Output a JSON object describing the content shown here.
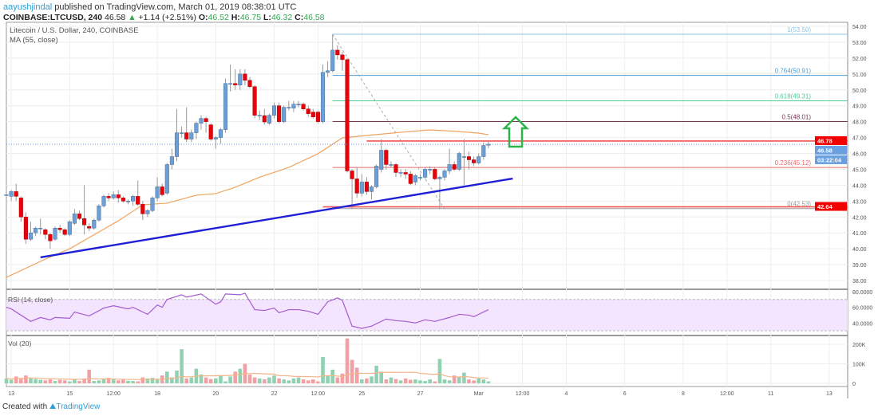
{
  "header": {
    "user": "aayushjindal",
    "published": "published on TradingView.com, March 01, 2019 08:38:01 UTC",
    "symbol": "COINBASE:LTCUSD, 240",
    "last": "46.58",
    "change": "+1.14 (+2.51%)",
    "o_label": "O:",
    "o": "46.52",
    "h_label": "H:",
    "h": "46.75",
    "l_label": "L:",
    "l": "46.32",
    "c_label": "C:",
    "c": "46.58"
  },
  "footer": {
    "created": "Created with",
    "brand": "TradingView"
  },
  "colors": {
    "up": "#6a9fd8",
    "down": "#e8000b",
    "ma": "#f0a35e",
    "trendline": "#1f1fd6",
    "hline": "#f25555",
    "vol_up": "#8fd1b0",
    "vol_down": "#f2a0a4",
    "rsi": "#a55bd0",
    "rsi_band": "#f3e5fd",
    "arrow": "#2db34a"
  },
  "chart_data": [
    {
      "type": "candlestick",
      "title": "Litecoin / U.S. Dollar, 240, COINBASE",
      "indicator": "MA (55, close)",
      "ylim": [
        38,
        54
      ],
      "yticks": [
        "54.00",
        "53.00",
        "52.00",
        "51.00",
        "50.00",
        "49.00",
        "48.00",
        "47.00",
        "46.00",
        "45.00",
        "44.00",
        "43.00",
        "42.00",
        "41.00",
        "40.00",
        "39.00",
        "38.00"
      ],
      "xticks": [
        {
          "label": "13",
          "candle": 1
        },
        {
          "label": "15",
          "candle": 13
        },
        {
          "label": "12:00",
          "candle": 22
        },
        {
          "label": "18",
          "candle": 31
        },
        {
          "label": "20",
          "candle": 43
        },
        {
          "label": "22",
          "candle": 55
        },
        {
          "label": "12:00",
          "candle": 64
        },
        {
          "label": "25",
          "candle": 73
        },
        {
          "label": "27",
          "candle": 85
        },
        {
          "label": "Mar",
          "candle": 97
        },
        {
          "label": "12:00",
          "candle": 106
        },
        {
          "label": "4",
          "candle": 115
        },
        {
          "label": "6",
          "candle": 127
        },
        {
          "label": "8",
          "candle": 139
        },
        {
          "label": "12:00",
          "candle": 148
        },
        {
          "label": "11",
          "candle": 157
        },
        {
          "label": "13",
          "candle": 169
        }
      ],
      "ohlc": [
        [
          43.4,
          43.8,
          42.8,
          43.4
        ],
        [
          43.3,
          43.7,
          43.0,
          43.6
        ],
        [
          43.6,
          44.1,
          43.0,
          43.3
        ],
        [
          43.2,
          43.3,
          41.7,
          42.0
        ],
        [
          42.0,
          42.3,
          40.3,
          40.6
        ],
        [
          40.6,
          41.7,
          40.5,
          41.0
        ],
        [
          41.0,
          41.4,
          40.8,
          41.3
        ],
        [
          41.3,
          41.9,
          40.9,
          41.3
        ],
        [
          41.2,
          41.3,
          40.6,
          40.9
        ],
        [
          40.9,
          41.0,
          40.0,
          40.5
        ],
        [
          40.6,
          41.4,
          40.5,
          41.3
        ],
        [
          41.3,
          41.5,
          41.0,
          41.2
        ],
        [
          41.2,
          41.3,
          40.8,
          40.9
        ],
        [
          40.9,
          41.8,
          40.8,
          41.7
        ],
        [
          41.6,
          42.5,
          41.5,
          42.2
        ],
        [
          42.2,
          42.4,
          41.8,
          41.9
        ],
        [
          41.9,
          44.0,
          40.9,
          41.5
        ],
        [
          41.4,
          41.6,
          41.1,
          41.3
        ],
        [
          41.3,
          41.9,
          41.2,
          41.8
        ],
        [
          41.8,
          42.8,
          41.7,
          42.7
        ],
        [
          42.7,
          43.4,
          42.6,
          43.3
        ],
        [
          43.3,
          43.5,
          43.0,
          43.2
        ],
        [
          43.2,
          43.6,
          43.1,
          43.4
        ],
        [
          43.4,
          43.7,
          42.9,
          43.2
        ],
        [
          43.2,
          43.3,
          42.9,
          43.0
        ],
        [
          43.0,
          43.1,
          42.8,
          43.0
        ],
        [
          43.0,
          43.4,
          42.7,
          43.3
        ],
        [
          43.3,
          44.3,
          42.7,
          42.8
        ],
        [
          42.8,
          43.0,
          41.8,
          42.2
        ],
        [
          42.2,
          42.5,
          42.0,
          42.4
        ],
        [
          42.4,
          43.3,
          42.3,
          43.2
        ],
        [
          43.2,
          44.5,
          43.0,
          43.9
        ],
        [
          43.9,
          44.1,
          43.3,
          43.4
        ],
        [
          43.5,
          45.4,
          43.4,
          45.3
        ],
        [
          45.3,
          46.3,
          45.0,
          45.8
        ],
        [
          45.8,
          48.8,
          45.5,
          47.3
        ],
        [
          47.3,
          47.7,
          47.0,
          47.3
        ],
        [
          47.3,
          48.9,
          46.7,
          46.9
        ],
        [
          46.9,
          47.5,
          46.7,
          47.3
        ],
        [
          47.3,
          48.0,
          46.9,
          47.9
        ],
        [
          47.9,
          48.4,
          47.5,
          48.2
        ],
        [
          48.2,
          48.3,
          47.3,
          48.0
        ],
        [
          47.8,
          47.9,
          46.8,
          46.9
        ],
        [
          46.9,
          47.1,
          46.3,
          47.0
        ],
        [
          47.0,
          47.6,
          46.6,
          47.5
        ],
        [
          47.5,
          50.7,
          47.3,
          50.4
        ],
        [
          50.4,
          51.6,
          49.9,
          50.4
        ],
        [
          50.4,
          51.3,
          50.0,
          50.3
        ],
        [
          50.3,
          51.3,
          50.0,
          51.0
        ],
        [
          51.0,
          51.3,
          50.3,
          50.6
        ],
        [
          50.6,
          50.8,
          50.1,
          50.2
        ],
        [
          50.2,
          50.3,
          48.2,
          48.4
        ],
        [
          48.4,
          48.7,
          48.1,
          48.4
        ],
        [
          48.38,
          48.8,
          47.8,
          47.98
        ],
        [
          47.9,
          48.5,
          47.8,
          48.4
        ],
        [
          48.4,
          49.2,
          48.2,
          49.0
        ],
        [
          49.0,
          49.2,
          47.9,
          48.0
        ],
        [
          48.0,
          49.0,
          47.9,
          48.9
        ],
        [
          48.9,
          49.3,
          48.7,
          48.9
        ],
        [
          48.85,
          49.3,
          48.6,
          49.1
        ],
        [
          49.1,
          49.3,
          48.9,
          49.1
        ],
        [
          49.1,
          49.2,
          48.7,
          48.8
        ],
        [
          48.8,
          49.0,
          48.3,
          48.5
        ],
        [
          48.6,
          48.8,
          48.2,
          48.3
        ],
        [
          48.6,
          48.7,
          47.9,
          48.0
        ],
        [
          48.0,
          51.6,
          47.9,
          51.1
        ],
        [
          51.1,
          51.8,
          50.8,
          51.2
        ],
        [
          51.2,
          53.5,
          51.1,
          52.5
        ],
        [
          52.5,
          52.8,
          51.9,
          52.2
        ],
        [
          52.2,
          52.4,
          51.2,
          51.9
        ],
        [
          51.9,
          52.0,
          44.8,
          44.9
        ],
        [
          44.9,
          45.0,
          42.5,
          44.4
        ],
        [
          44.4,
          45.1,
          43.2,
          43.5
        ],
        [
          43.5,
          44.7,
          43.3,
          44.2
        ],
        [
          44.2,
          44.5,
          43.4,
          43.6
        ],
        [
          43.6,
          44.0,
          43.1,
          43.9
        ],
        [
          43.9,
          45.3,
          43.8,
          45.2
        ],
        [
          45.0,
          46.9,
          44.8,
          46.2
        ],
        [
          46.2,
          46.3,
          45.0,
          45.3
        ],
        [
          45.3,
          45.5,
          45.1,
          45.3
        ],
        [
          45.3,
          45.4,
          44.5,
          44.8
        ],
        [
          44.8,
          45.0,
          44.5,
          44.8
        ],
        [
          44.8,
          45.0,
          44.4,
          44.7
        ],
        [
          44.7,
          44.9,
          44.0,
          44.1
        ],
        [
          44.2,
          44.7,
          44.0,
          44.6
        ],
        [
          44.5,
          44.7,
          44.3,
          44.5
        ],
        [
          44.5,
          45.1,
          44.4,
          45.0
        ],
        [
          45.0,
          45.2,
          44.7,
          45.0
        ],
        [
          45.0,
          45.1,
          44.3,
          44.4
        ],
        [
          44.4,
          44.6,
          42.5,
          44.5
        ],
        [
          44.5,
          45.0,
          44.3,
          44.9
        ],
        [
          44.9,
          46.3,
          44.7,
          45.3
        ],
        [
          45.3,
          45.5,
          44.9,
          45.0
        ],
        [
          45.0,
          46.1,
          44.9,
          46.0
        ],
        [
          45.8,
          46.9,
          44.0,
          45.8
        ],
        [
          45.8,
          46.1,
          45.0,
          45.6
        ],
        [
          45.6,
          45.8,
          45.2,
          45.4
        ],
        [
          45.4,
          46.0,
          45.3,
          45.8
        ],
        [
          45.8,
          46.7,
          45.6,
          46.5
        ],
        [
          46.52,
          46.75,
          46.32,
          46.58
        ]
      ],
      "ma_55": [
        [
          0,
          38.2
        ],
        [
          8,
          39.35
        ],
        [
          13,
          40.0
        ],
        [
          23,
          41.76
        ],
        [
          28,
          42.77
        ],
        [
          33,
          42.87
        ],
        [
          39,
          43.37
        ],
        [
          43,
          43.47
        ],
        [
          47,
          43.87
        ],
        [
          52,
          44.5
        ],
        [
          58,
          45.12
        ],
        [
          64,
          45.98
        ],
        [
          69,
          46.98
        ],
        [
          74,
          47.13
        ],
        [
          81,
          47.33
        ],
        [
          87,
          47.48
        ],
        [
          92,
          47.4
        ],
        [
          97,
          47.28
        ],
        [
          99,
          47.18
        ]
      ],
      "price_labels": [
        {
          "text": "46.78",
          "price": 46.78,
          "color": "#f20000"
        },
        {
          "text": "46.58",
          "price": 46.58,
          "color": "#6a9fe0"
        },
        {
          "text": "03:22:04",
          "price": 45.95,
          "color": "#6a9fe0"
        },
        {
          "text": "42.64",
          "price": 42.64,
          "color": "#f20000"
        }
      ],
      "fib_levels": [
        {
          "ratio": "1",
          "price": 53.5,
          "label": "1(53.50)",
          "color": "#8ec3e6"
        },
        {
          "ratio": "0.764",
          "price": 50.91,
          "label": "0.764(50.91)",
          "color": "#4f9fd6"
        },
        {
          "ratio": "0.618",
          "price": 49.31,
          "label": "0.618(49.31)",
          "color": "#4ccf93"
        },
        {
          "ratio": "0.5",
          "price": 48.01,
          "label": "0.5(48.01)",
          "color": "#7a3655"
        },
        {
          "ratio": "0.236",
          "price": 45.12,
          "label": "0.236(45.12)",
          "color": "#e86a6a"
        },
        {
          "ratio": "0",
          "price": 42.53,
          "label": "0(42.53)",
          "color": "#999999"
        }
      ],
      "trendline": [
        [
          7,
          39.46
        ],
        [
          104,
          44.42
        ]
      ],
      "horizontal_lines": [
        {
          "price": 46.78,
          "from": 74
        },
        {
          "price": 42.64,
          "from": 65
        }
      ],
      "fib_diagonal": [
        [
          67,
          53.5
        ],
        [
          90,
          42.5
        ]
      ]
    },
    {
      "type": "line",
      "title": "RSI (14, close)",
      "ylim": [
        25,
        82
      ],
      "band": [
        30,
        70
      ],
      "yticks": [
        {
          "label": "80.0000",
          "v": 80
        },
        {
          "label": "60.0000",
          "v": 60
        },
        {
          "label": "40.0000",
          "v": 40
        }
      ],
      "points": [
        [
          0,
          60
        ],
        [
          1,
          58
        ],
        [
          5,
          42
        ],
        [
          7,
          47
        ],
        [
          9,
          44
        ],
        [
          10,
          47
        ],
        [
          13,
          46
        ],
        [
          14,
          54
        ],
        [
          17,
          49
        ],
        [
          20,
          59
        ],
        [
          22,
          62
        ],
        [
          25,
          58
        ],
        [
          26,
          60
        ],
        [
          29,
          51
        ],
        [
          31,
          63
        ],
        [
          32,
          60
        ],
        [
          33,
          70
        ],
        [
          36,
          76
        ],
        [
          37,
          73
        ],
        [
          40,
          77
        ],
        [
          43,
          64
        ],
        [
          44,
          67
        ],
        [
          45,
          77
        ],
        [
          48,
          76
        ],
        [
          49,
          78
        ],
        [
          51,
          57
        ],
        [
          53,
          56
        ],
        [
          55,
          59
        ],
        [
          56,
          53
        ],
        [
          58,
          57
        ],
        [
          60,
          57
        ],
        [
          62,
          55
        ],
        [
          63,
          53
        ],
        [
          64,
          51
        ],
        [
          66,
          67
        ],
        [
          68,
          72
        ],
        [
          69,
          69
        ],
        [
          71,
          36
        ],
        [
          73,
          33
        ],
        [
          75,
          36
        ],
        [
          78,
          45
        ],
        [
          80,
          43
        ],
        [
          82,
          42
        ],
        [
          84,
          40
        ],
        [
          86,
          44
        ],
        [
          88,
          42
        ],
        [
          91,
          47
        ],
        [
          93,
          51
        ],
        [
          95,
          50
        ],
        [
          96,
          48
        ],
        [
          99,
          57
        ]
      ]
    },
    {
      "type": "bar",
      "title": "Vol (20)",
      "ylim": [
        0,
        240
      ],
      "unit": "K",
      "yticks": [
        {
          "label": "200K",
          "v": 200
        },
        {
          "label": "100K",
          "v": 100
        },
        {
          "label": "0",
          "v": 0
        }
      ],
      "values": [
        25,
        18,
        35,
        22,
        40,
        25,
        22,
        18,
        15,
        20,
        12,
        18,
        15,
        10,
        22,
        12,
        25,
        70,
        12,
        15,
        20,
        28,
        20,
        15,
        20,
        13,
        12,
        10,
        30,
        25,
        28,
        18,
        40,
        60,
        30,
        65,
        175,
        25,
        30,
        75,
        45,
        30,
        22,
        25,
        40,
        10,
        35,
        60,
        75,
        100,
        45,
        30,
        25,
        20,
        30,
        40,
        25,
        20,
        15,
        25,
        30,
        20,
        15,
        20,
        10,
        135,
        40,
        70,
        30,
        50,
        230,
        120,
        80,
        20,
        25,
        35,
        90,
        60,
        20,
        30,
        22,
        15,
        25,
        18,
        20,
        15,
        12,
        20,
        10,
        125,
        20,
        15,
        40,
        35,
        55,
        20,
        15,
        25,
        20,
        10
      ]
    }
  ]
}
